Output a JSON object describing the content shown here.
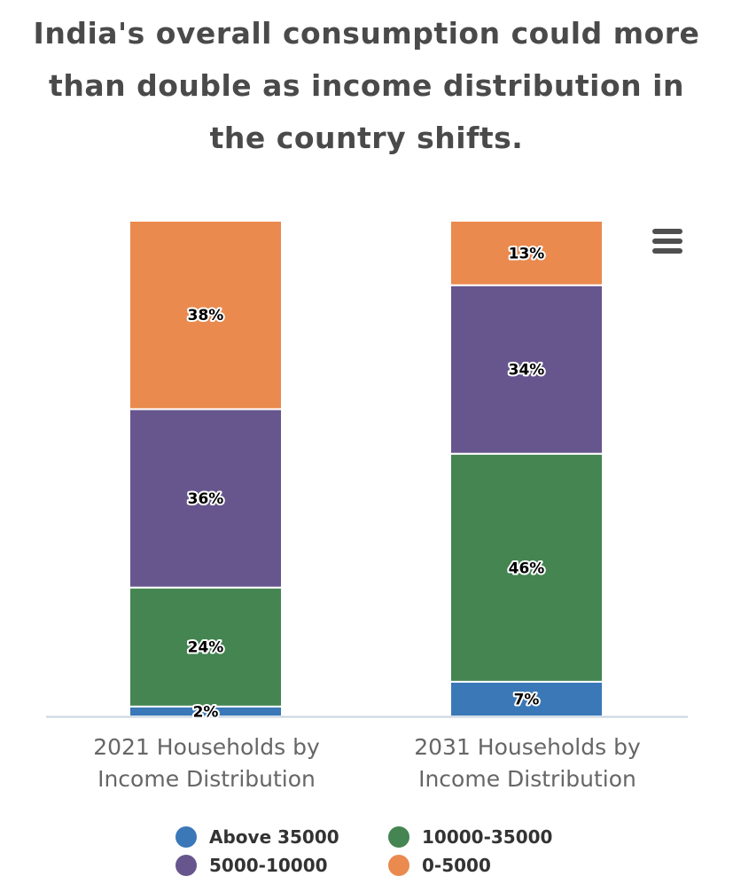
{
  "chart_data": {
    "type": "bar",
    "stacked": true,
    "title": "India's overall consumption could more than double as income distribution in the country shifts.",
    "categories": [
      "2021 Households by Income Distribution",
      "2031 Households by Income Distribution"
    ],
    "ylim": [
      0,
      100
    ],
    "grid": false,
    "legend_position": "bottom",
    "series": [
      {
        "name": "Above 35000",
        "color": "#3b78b8",
        "values": [
          2,
          7
        ],
        "labels": [
          "2%",
          "7%"
        ]
      },
      {
        "name": "10000-35000",
        "color": "#448552",
        "values": [
          24,
          46
        ],
        "labels": [
          "24%",
          "46%"
        ]
      },
      {
        "name": "5000-10000",
        "color": "#67568d",
        "values": [
          36,
          34
        ],
        "labels": [
          "36%",
          "34%"
        ]
      },
      {
        "name": "0-5000",
        "color": "#ea8a4e",
        "values": [
          38,
          13
        ],
        "labels": [
          "38%",
          "13%"
        ]
      }
    ]
  },
  "category_lines": [
    [
      "2021 Households by",
      "Income Distribution"
    ],
    [
      "2031 Households by",
      "Income Distribution"
    ]
  ],
  "menu_icon": "hamburger-menu-icon"
}
